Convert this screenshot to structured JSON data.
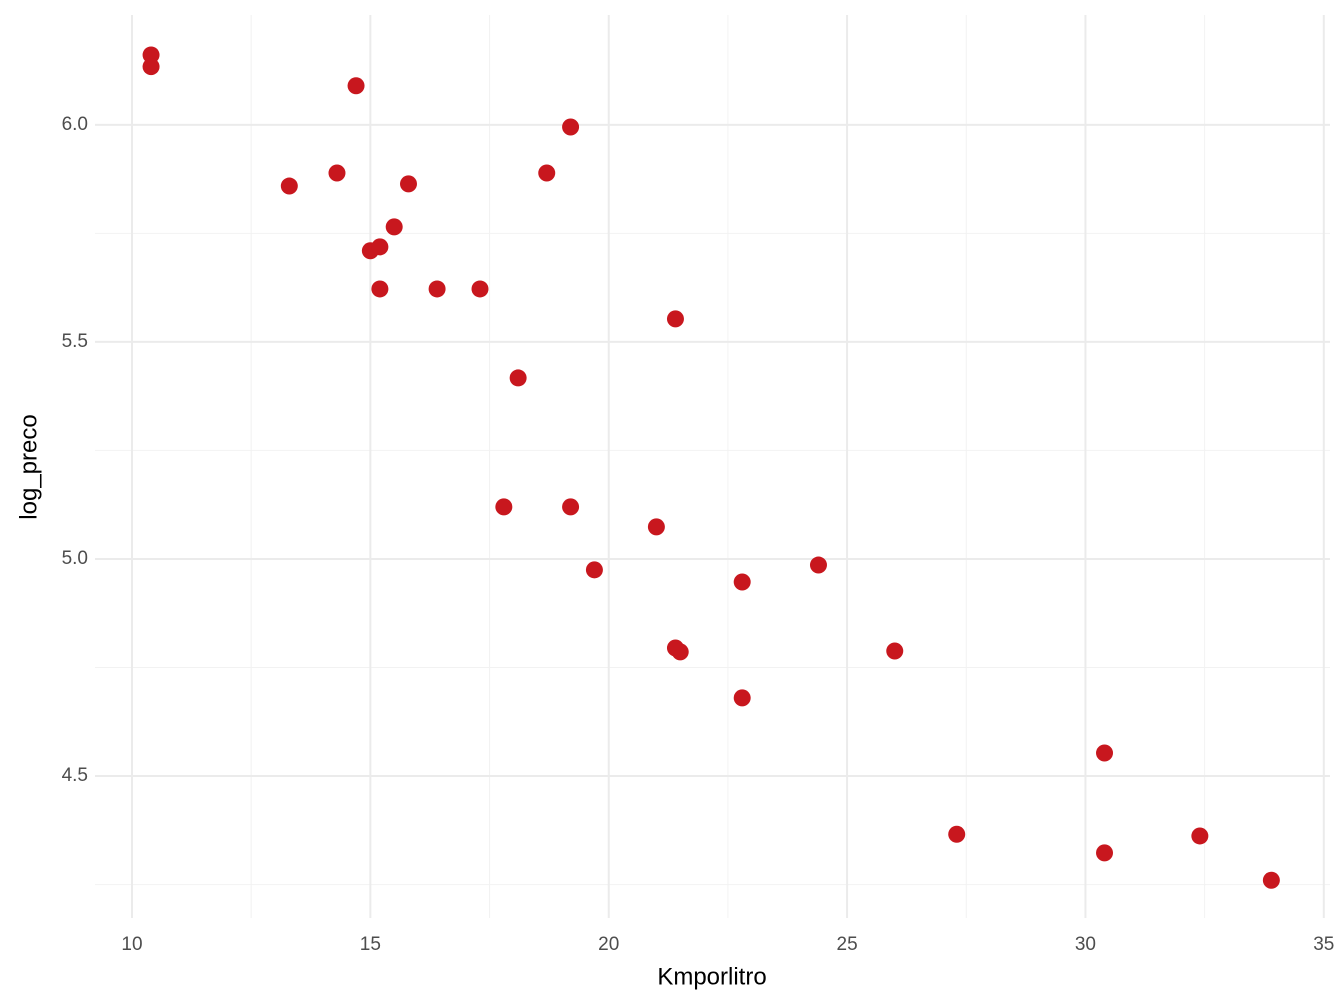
{
  "chart_data": {
    "type": "scatter",
    "x_label": "Kmporlitro",
    "y_label": "log_preco",
    "color": "#c8171e",
    "xlim": [
      9.224,
      35.13
    ],
    "ylim": [
      4.173,
      6.253
    ],
    "xticks": [
      10,
      15,
      20,
      25,
      30,
      35
    ],
    "yticks": [
      4.5,
      {
        "value": 5.0,
        "label": "5.0"
      },
      5.5,
      {
        "value": 6.0,
        "label": "6.0"
      }
    ],
    "minor_xticks": [
      12.5,
      17.5,
      22.5,
      27.5,
      32.5
    ],
    "minor_yticks": [
      4.25,
      4.75,
      5.25,
      5.75
    ],
    "grid": true,
    "x": [
      10.4,
      10.4,
      14.7,
      19.2,
      13.3,
      14.3,
      15.8,
      18.7,
      15.5,
      15.0,
      15.2,
      15.2,
      16.4,
      17.3,
      21.4,
      18.1,
      17.8,
      19.2,
      21.0,
      19.7,
      22.8,
      24.4,
      21.4,
      21.5,
      26.0,
      22.8,
      30.4,
      27.3,
      30.4,
      32.4,
      33.9
    ],
    "y": [
      6.161,
      6.134,
      6.09,
      5.995,
      5.859,
      5.889,
      5.864,
      5.889,
      5.765,
      5.71,
      5.719,
      5.622,
      5.622,
      5.622,
      5.553,
      5.417,
      5.12,
      5.12,
      5.074,
      4.975,
      4.947,
      4.986,
      4.795,
      4.786,
      4.788,
      4.68,
      4.553,
      4.366,
      4.323,
      4.362,
      4.26
    ]
  }
}
